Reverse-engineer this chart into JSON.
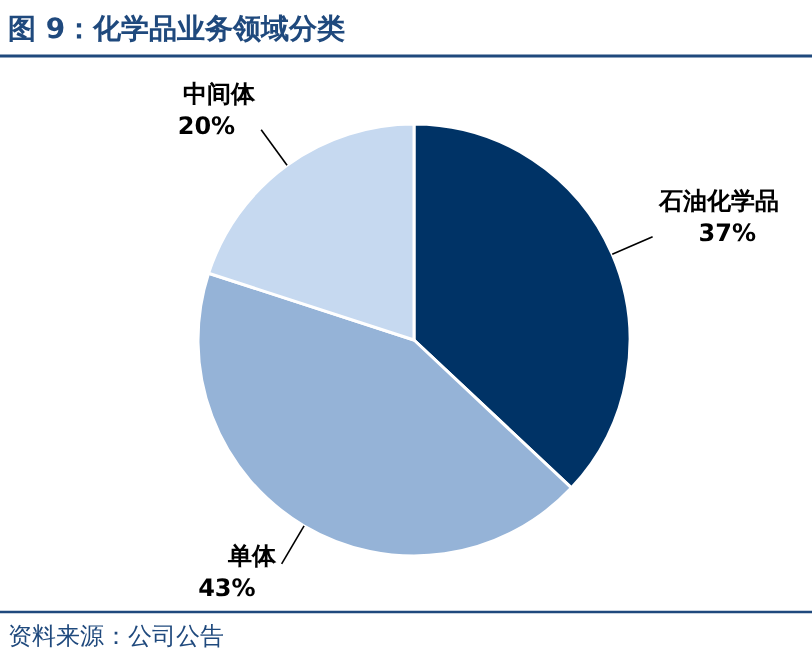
{
  "chart_data": {
    "type": "pie",
    "title": "图 9：化学品业务领域分类",
    "categories": [
      "石油化学品",
      "单体",
      "中间体"
    ],
    "values": [
      37,
      43,
      20
    ],
    "colors": [
      "#003366",
      "#95b3d7",
      "#c6d9f0"
    ],
    "value_labels": [
      "37%",
      "43%",
      "20%"
    ],
    "annotations": [
      "资料来源：公司公告"
    ]
  }
}
